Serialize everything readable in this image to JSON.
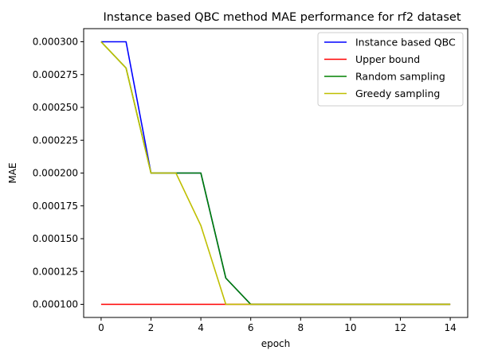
{
  "chart_data": {
    "type": "line",
    "title": "Instance based QBC method MAE performance for rf2 dataset",
    "xlabel": "epoch",
    "ylabel": "MAE",
    "xlim": [
      -0.7,
      14.7
    ],
    "ylim": [
      9e-05,
      0.00031
    ],
    "xticks": [
      0,
      2,
      4,
      6,
      8,
      10,
      12,
      14
    ],
    "xtick_labels": [
      "0",
      "2",
      "4",
      "6",
      "8",
      "10",
      "12",
      "14"
    ],
    "yticks": [
      0.0001,
      0.000125,
      0.00015,
      0.000175,
      0.0002,
      0.000225,
      0.00025,
      0.000275,
      0.0003
    ],
    "ytick_labels": [
      "0.000100",
      "0.000125",
      "0.000150",
      "0.000175",
      "0.000200",
      "0.000225",
      "0.000250",
      "0.000275",
      "0.000300"
    ],
    "grid": false,
    "legend_position": "top-right",
    "x": [
      0,
      1,
      2,
      3,
      4,
      5,
      6,
      7,
      8,
      9,
      10,
      11,
      12,
      13,
      14
    ],
    "series": [
      {
        "name": "Instance based QBC",
        "color": "#0000ff",
        "values": [
          0.0003,
          0.0003,
          0.0002,
          0.0002,
          0.0002,
          0.00012,
          0.0001,
          0.0001,
          0.0001,
          0.0001,
          0.0001,
          0.0001,
          0.0001,
          0.0001,
          0.0001
        ]
      },
      {
        "name": "Upper bound",
        "color": "#ff0000",
        "values": [
          0.0001,
          0.0001,
          0.0001,
          0.0001,
          0.0001,
          0.0001,
          0.0001,
          0.0001,
          0.0001,
          0.0001,
          0.0001,
          0.0001,
          0.0001,
          0.0001,
          0.0001
        ]
      },
      {
        "name": "Random sampling",
        "color": "#008000",
        "values": [
          0.0003,
          0.00028,
          0.0002,
          0.0002,
          0.0002,
          0.00012,
          0.0001,
          0.0001,
          0.0001,
          0.0001,
          0.0001,
          0.0001,
          0.0001,
          0.0001,
          0.0001
        ]
      },
      {
        "name": "Greedy sampling",
        "color": "#bfbf00",
        "values": [
          0.0003,
          0.00028,
          0.0002,
          0.0002,
          0.00016,
          0.0001,
          0.0001,
          0.0001,
          0.0001,
          0.0001,
          0.0001,
          0.0001,
          0.0001,
          0.0001,
          0.0001
        ]
      }
    ]
  }
}
